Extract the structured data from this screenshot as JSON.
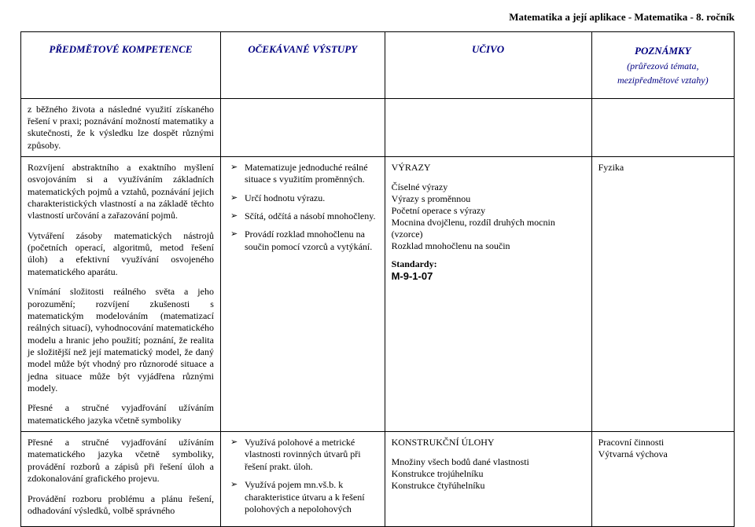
{
  "page_title": "Matematika a její aplikace - Matematika - 8. ročník",
  "headers": {
    "col1": "PŘEDMĚTOVÉ KOMPETENCE",
    "col2": "OČEKÁVANÉ VÝSTUPY",
    "col3": "UČIVO",
    "col4_main": "POZNÁMKY",
    "col4_sub": "(průřezová témata, mezipředmětové vztahy)"
  },
  "row1": {
    "c1_p1": "z běžného života a následné  využití získaného řešení v praxi; poznávání možností matematiky a skutečnosti, že k výsledku lze dospět různými způsoby."
  },
  "row2": {
    "c1_p1": "Rozvíjení abstraktního a exaktního myšlení osvojováním si a využíváním základních matematických pojmů a vztahů, poznávání jejich charakteristických vlastností a na základě těchto vlastností určování a zařazování pojmů.",
    "c1_p2": "Vytváření zásoby matematických nástrojů (početních operací, algoritmů, metod řešení úloh) a  efektivní využívání osvojeného matematického aparátu.",
    "c1_p3": "Vnímání složitosti reálného světa a jeho porozumění; rozvíjení zkušenosti s matematickým modelováním (matematizací reálných situací), vyhodnocování matematického modelu a hranic jeho použití; poznání, že realita je složitější než její matematický model, že daný model může být vhodný pro různorodé situace a jedna situace může být vyjádřena různými modely.",
    "c1_p4": "Přesné a stručné vyjadřování užíváním matematického jazyka včetně symboliky",
    "c2_li1": "Matematizuje jednoduché reálné situace s využitím proměnných.",
    "c2_li2": "Určí hodnotu výrazu.",
    "c2_li3": "Sčítá, odčítá a násobí mnohočleny.",
    "c2_li4": "Provádí rozklad mnohočlenu na součin pomocí vzorců a vytýkání.",
    "c3_h": "VÝRAZY",
    "c3_l1": "Číselné výrazy",
    "c3_l2": "Výrazy s proměnnou",
    "c3_l3": "Početní operace s výrazy",
    "c3_l4": "Mocnina dvojčlenu, rozdíl druhých mocnin (vzorce)",
    "c3_l5": "Rozklad mnohočlenu na součin",
    "c3_std_label": "Standardy:",
    "c3_std_code": "M-9-1-07",
    "c4_l1": "Fyzika"
  },
  "row3": {
    "c1_p1": "Přesné a stručné vyjadřování užíváním matematického jazyka včetně symboliky, provádění rozborů a zápisů při řešení úloh a zdokonalování grafického projevu.",
    "c1_p2": "Provádění rozboru problému a plánu řešení, odhadování výsledků, volbě správného",
    "c2_li1": "Využívá polohové a metrické vlastnosti rovinných útvarů při řešení prakt.  úloh.",
    "c2_li2": "Využívá pojem mn.vš.b. k charakteristice útvaru a k řešení polohových a nepolohových",
    "c3_h": "KONSTRUKČNÍ ÚLOHY",
    "c3_l1": "Množiny všech bodů dané vlastnosti",
    "c3_l2": "Konstrukce trojúhelníku",
    "c3_l3": "Konstrukce čtyřúhelníku",
    "c4_l1": "Pracovní činnosti",
    "c4_l2": "Výtvarná výchova"
  }
}
